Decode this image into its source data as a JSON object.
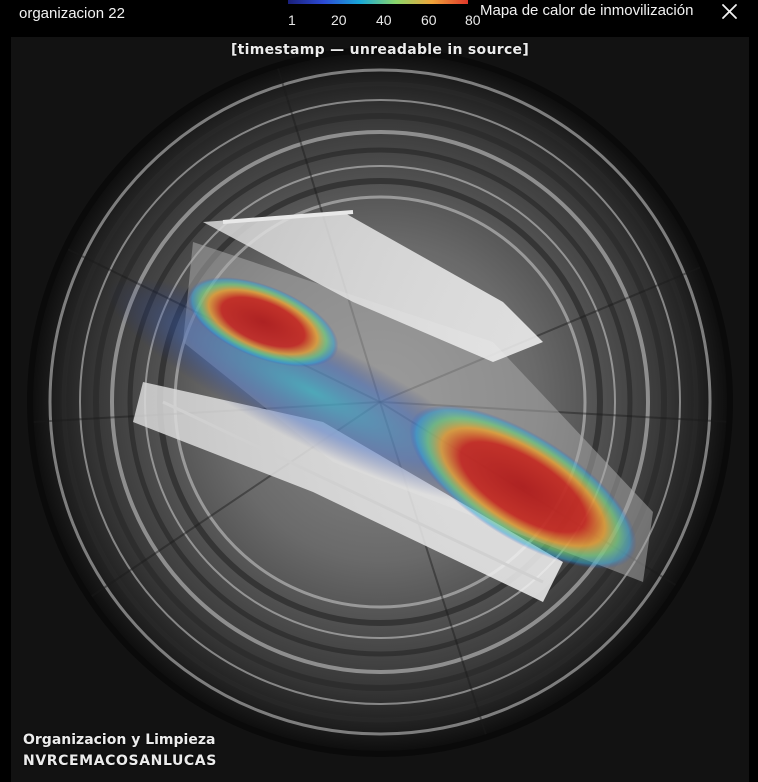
{
  "header": {
    "organization_name": "organizacion 22",
    "panel_title": "Mapa de calor de inmovilización",
    "close_icon": "close-icon"
  },
  "heatmap_legend": {
    "ticks": [
      "1",
      "20",
      "40",
      "60",
      "80"
    ],
    "colors": [
      "#1a1f7a",
      "#2c4bd6",
      "#18a8d8",
      "#8ad66a",
      "#f0a43a",
      "#e0382a"
    ]
  },
  "camera": {
    "timestamp": "[timestamp — unreadable in source]",
    "overlay_line_1": "Organizacion y Limpieza",
    "overlay_line_2": "NVRCEMACOSANLUCAS"
  }
}
